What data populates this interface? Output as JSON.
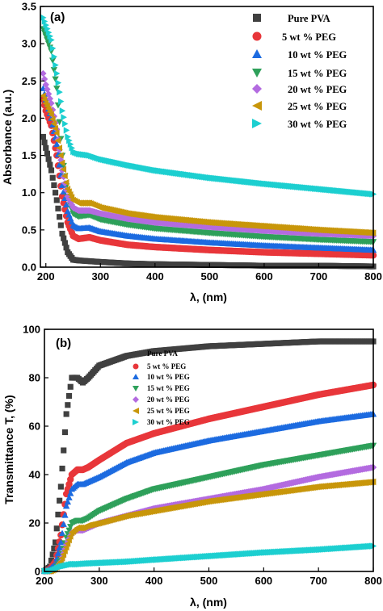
{
  "chart_data": [
    {
      "type": "scatter",
      "panel_label": "(a)",
      "xlabel": "λ, (nm)",
      "ylabel": "Absorbance (a.u.)",
      "xlim": [
        190,
        800
      ],
      "ylim": [
        0,
        3.5
      ],
      "xticks": [
        200,
        300,
        400,
        500,
        600,
        700,
        800
      ],
      "yticks": [
        0.0,
        0.5,
        1.0,
        1.5,
        2.0,
        2.5,
        3.0,
        3.5
      ],
      "xtick_labels": [
        "200",
        "300",
        "400",
        "500",
        "600",
        "700",
        "800"
      ],
      "ytick_labels": [
        "0.0",
        "0.5",
        "1.0",
        "1.5",
        "2.0",
        "2.5",
        "3.0",
        "3.5"
      ],
      "legend_position": "top-right",
      "series": [
        {
          "name": "Pure PVA",
          "marker": "square",
          "color": "#404040",
          "x": [
            195,
            200,
            210,
            220,
            230,
            240,
            250,
            260,
            280,
            300,
            350,
            400,
            500,
            600,
            700,
            800
          ],
          "y": [
            1.75,
            1.6,
            1.3,
            0.9,
            0.45,
            0.2,
            0.1,
            0.09,
            0.08,
            0.07,
            0.05,
            0.04,
            0.03,
            0.02,
            0.02,
            0.01
          ]
        },
        {
          "name": "5  wt % PEG",
          "marker": "circle",
          "color": "#e8363a",
          "x": [
            195,
            200,
            210,
            220,
            230,
            240,
            250,
            260,
            280,
            300,
            350,
            400,
            500,
            600,
            700,
            800
          ],
          "y": [
            2.25,
            2.1,
            1.9,
            1.5,
            0.95,
            0.6,
            0.42,
            0.38,
            0.4,
            0.36,
            0.3,
            0.27,
            0.23,
            0.2,
            0.18,
            0.16
          ]
        },
        {
          "name": "10 wt % PEG",
          "marker": "triangle-up",
          "color": "#1c6be0",
          "x": [
            195,
            200,
            210,
            220,
            230,
            240,
            250,
            260,
            280,
            300,
            350,
            400,
            500,
            600,
            700,
            800
          ],
          "y": [
            2.4,
            2.25,
            2.0,
            1.65,
            1.1,
            0.75,
            0.56,
            0.52,
            0.53,
            0.48,
            0.42,
            0.38,
            0.33,
            0.29,
            0.26,
            0.23
          ]
        },
        {
          "name": "15 wt % PEG",
          "marker": "triangle-down",
          "color": "#2ea05a",
          "x": [
            195,
            200,
            210,
            220,
            230,
            240,
            250,
            260,
            280,
            300,
            350,
            400,
            500,
            600,
            700,
            800
          ],
          "y": [
            3.2,
            3.1,
            2.9,
            2.4,
            1.5,
            0.95,
            0.72,
            0.68,
            0.7,
            0.64,
            0.57,
            0.52,
            0.46,
            0.41,
            0.37,
            0.34
          ]
        },
        {
          "name": "20 wt % PEG",
          "marker": "diamond",
          "color": "#b36be0",
          "x": [
            195,
            200,
            210,
            220,
            230,
            240,
            250,
            260,
            280,
            300,
            350,
            400,
            500,
            600,
            700,
            800
          ],
          "y": [
            2.6,
            2.45,
            2.2,
            1.85,
            1.3,
            0.95,
            0.8,
            0.76,
            0.76,
            0.72,
            0.65,
            0.6,
            0.54,
            0.49,
            0.45,
            0.42
          ]
        },
        {
          "name": "25 wt % PEG",
          "marker": "triangle-left",
          "color": "#c8960a",
          "x": [
            195,
            200,
            210,
            220,
            230,
            240,
            250,
            260,
            280,
            300,
            350,
            400,
            500,
            600,
            700,
            800
          ],
          "y": [
            2.3,
            2.2,
            2.05,
            1.8,
            1.4,
            1.05,
            0.9,
            0.86,
            0.86,
            0.8,
            0.72,
            0.67,
            0.6,
            0.55,
            0.5,
            0.46
          ]
        },
        {
          "name": "30 wt % PEG",
          "marker": "triangle-right",
          "color": "#1ccfd0",
          "x": [
            195,
            200,
            210,
            220,
            230,
            240,
            250,
            260,
            280,
            300,
            350,
            400,
            500,
            600,
            700,
            800
          ],
          "y": [
            3.35,
            3.25,
            3.05,
            2.6,
            2.1,
            1.75,
            1.55,
            1.52,
            1.5,
            1.45,
            1.37,
            1.3,
            1.2,
            1.12,
            1.05,
            0.98
          ]
        }
      ]
    },
    {
      "type": "scatter",
      "panel_label": "(b)",
      "xlabel": "λ, (nm)",
      "ylabel": "Transmittance T, (%)",
      "xlim": [
        200,
        800
      ],
      "ylim": [
        0,
        100
      ],
      "xticks": [
        200,
        300,
        400,
        500,
        600,
        700,
        800
      ],
      "yticks": [
        0,
        20,
        40,
        60,
        80,
        100
      ],
      "xtick_labels": [
        "200",
        "300",
        "400",
        "500",
        "600",
        "700",
        "800"
      ],
      "ytick_labels": [
        "0",
        "20",
        "40",
        "60",
        "80",
        "100"
      ],
      "legend_position": "upper-left",
      "series": [
        {
          "name": "Pure PVA",
          "marker": "square",
          "color": "#404040",
          "x": [
            200,
            210,
            220,
            230,
            240,
            250,
            260,
            270,
            280,
            300,
            350,
            400,
            500,
            600,
            700,
            800
          ],
          "y": [
            0,
            2,
            12,
            35,
            65,
            80,
            80,
            78,
            80,
            85,
            89,
            91,
            93,
            94,
            95,
            95
          ]
        },
        {
          "name": "5  wt % PEG",
          "marker": "circle",
          "color": "#e8363a",
          "x": [
            200,
            210,
            220,
            230,
            240,
            250,
            260,
            270,
            280,
            300,
            350,
            400,
            500,
            600,
            700,
            800
          ],
          "y": [
            0,
            1,
            4,
            15,
            32,
            40,
            42,
            42,
            43,
            46,
            53,
            57,
            63,
            68,
            73,
            77
          ]
        },
        {
          "name": "10 wt % PEG",
          "marker": "triangle-up",
          "color": "#1c6be0",
          "x": [
            200,
            210,
            220,
            230,
            240,
            250,
            260,
            270,
            280,
            300,
            350,
            400,
            500,
            600,
            700,
            800
          ],
          "y": [
            0,
            1,
            3,
            12,
            27,
            34,
            36,
            36,
            37,
            39,
            45,
            49,
            54,
            58,
            62,
            65
          ]
        },
        {
          "name": "15 wt % PEG",
          "marker": "triangle-down",
          "color": "#2ea05a",
          "x": [
            200,
            210,
            220,
            230,
            240,
            250,
            260,
            270,
            280,
            300,
            350,
            400,
            500,
            600,
            700,
            800
          ],
          "y": [
            0,
            0,
            1,
            5,
            14,
            20,
            21,
            21,
            22,
            25,
            30,
            34,
            39,
            44,
            48,
            52
          ]
        },
        {
          "name": "20 wt % PEG",
          "marker": "diamond",
          "color": "#b36be0",
          "x": [
            200,
            210,
            220,
            230,
            240,
            250,
            260,
            270,
            280,
            300,
            350,
            400,
            500,
            600,
            700,
            800
          ],
          "y": [
            0,
            0,
            1,
            4,
            11,
            16,
            17,
            17,
            18,
            20,
            23,
            26,
            30,
            34,
            39,
            43
          ]
        },
        {
          "name": "25 wt % PEG",
          "marker": "triangle-left",
          "color": "#c8960a",
          "x": [
            200,
            210,
            220,
            230,
            240,
            250,
            260,
            270,
            280,
            300,
            350,
            400,
            500,
            600,
            700,
            800
          ],
          "y": [
            0,
            0,
            1,
            4,
            10,
            16,
            18,
            18,
            19,
            20,
            23,
            25,
            29,
            32,
            35,
            37
          ]
        },
        {
          "name": "30 wt % PEG",
          "marker": "triangle-right",
          "color": "#1ccfd0",
          "x": [
            200,
            210,
            220,
            230,
            240,
            250,
            260,
            280,
            300,
            350,
            400,
            500,
            600,
            700,
            800
          ],
          "y": [
            0,
            0,
            1,
            2,
            2.5,
            3,
            3,
            3.3,
            3.5,
            4,
            4.8,
            6.3,
            7.8,
            9,
            10.5
          ]
        }
      ]
    }
  ]
}
